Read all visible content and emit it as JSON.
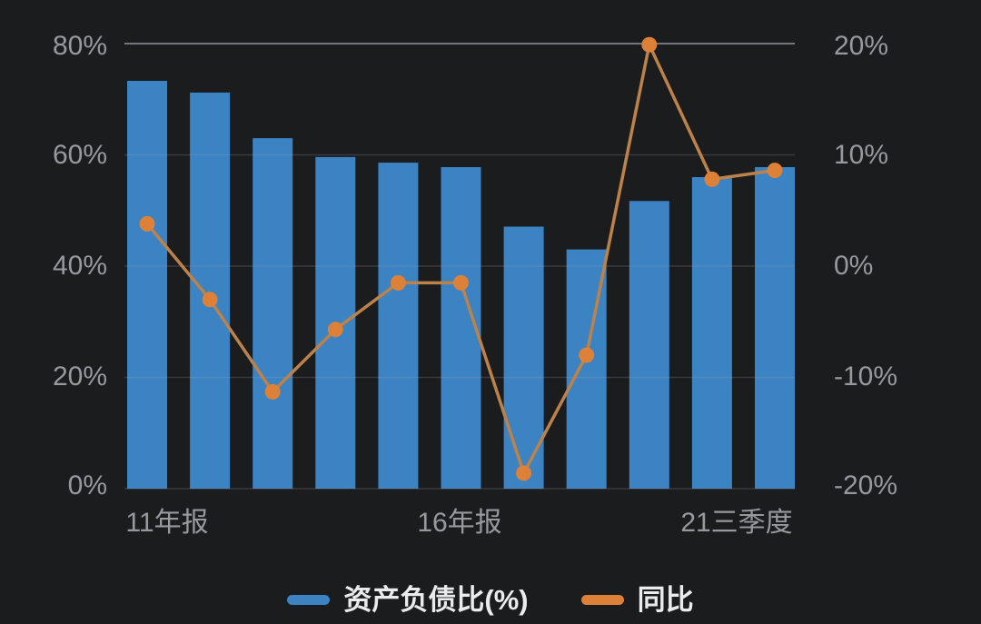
{
  "chart": {
    "background_color": "#1b1c1e",
    "bar_color": "#3b83c3",
    "line_color": "#bd8249",
    "marker_color": "#dd8138",
    "gridline_top_color": "#73767a",
    "gridline_color": "rgba(165,170,178,0.22)",
    "axis_label_color": "#96999e"
  },
  "axes": {
    "left_ticks": [
      "80%",
      "60%",
      "40%",
      "20%",
      "0%"
    ],
    "right_ticks": [
      "20%",
      "10%",
      "0%",
      "-10%",
      "-20%"
    ],
    "x_ticks": [
      "11年报",
      "16年报",
      "21三季度"
    ]
  },
  "legend": {
    "items": [
      {
        "label": "资产负债比(%)",
        "color": "#3b83c3"
      },
      {
        "label": "同比",
        "color": "#dd8138"
      }
    ]
  },
  "chart_data": {
    "type": "combo",
    "categories": [
      "11年报",
      "",
      "",
      "",
      "",
      "16年报",
      "",
      "",
      "",
      "",
      "21三季度"
    ],
    "series": [
      {
        "name": "资产负债比(%)",
        "type": "bar",
        "y_axis": "left",
        "color": "#3b83c3",
        "values": [
          73.3,
          71.2,
          63.0,
          59.6,
          58.6,
          57.8,
          47.1,
          43.0,
          51.7,
          56.0,
          57.8
        ]
      },
      {
        "name": "同比",
        "type": "line",
        "y_axis": "right",
        "color": "#dd8138",
        "values": [
          3.8,
          -3.0,
          -11.3,
          -5.7,
          -1.5,
          -1.5,
          -18.6,
          -8.0,
          19.9,
          7.8,
          8.6
        ]
      }
    ],
    "left_axis": {
      "ticks": [
        "80%",
        "60%",
        "40%",
        "20%",
        "0%"
      ],
      "min": 0,
      "max": 80,
      "unit": "%"
    },
    "right_axis": {
      "ticks": [
        "20%",
        "10%",
        "0%",
        "-10%",
        "-20%"
      ],
      "min": -20,
      "max": 20,
      "unit": "%"
    },
    "x_tick_positions": [
      0,
      5,
      10
    ],
    "grid": true,
    "legend_position": "bottom"
  }
}
